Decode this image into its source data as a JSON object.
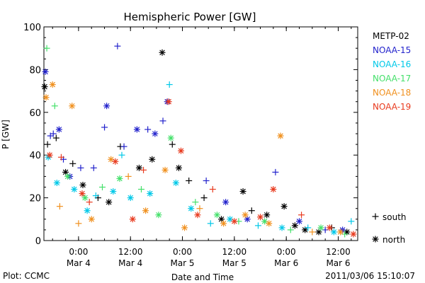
{
  "chart_data": {
    "type": "scatter",
    "title": "Hemispheric Power [GW]",
    "xlabel": "Date and Time",
    "ylabel": "P [GW]",
    "ylim": [
      0,
      100
    ],
    "yticks": [
      0,
      20,
      40,
      60,
      80,
      100
    ],
    "x_start": "2011-03-03T16:00",
    "x_end": "2011-03-06T16:30",
    "xticks": [
      {
        "time": "2011-03-04T00:00",
        "label1": "0:00",
        "label2": "Mar 4"
      },
      {
        "time": "2011-03-04T12:00",
        "label1": "12:00",
        "label2": "Mar 4"
      },
      {
        "time": "2011-03-05T00:00",
        "label1": "0:00",
        "label2": "Mar 5"
      },
      {
        "time": "2011-03-05T12:00",
        "label1": "12:00",
        "label2": "Mar 5"
      },
      {
        "time": "2011-03-06T00:00",
        "label1": "0:00",
        "label2": "Mar 6"
      },
      {
        "time": "2011-03-06T12:00",
        "label1": "12:00",
        "label2": "Mar 6"
      }
    ],
    "legend_position": "right",
    "series": [
      {
        "name": "METP-02",
        "color": "#000000",
        "points": [
          {
            "t": "2011-03-03T16:10",
            "hemisphere": "north",
            "y": 72
          },
          {
            "t": "2011-03-03T16:50",
            "hemisphere": "south",
            "y": 45
          },
          {
            "t": "2011-03-03T18:50",
            "hemisphere": "south",
            "y": 48
          },
          {
            "t": "2011-03-03T21:00",
            "hemisphere": "north",
            "y": 32
          },
          {
            "t": "2011-03-03T22:40",
            "hemisphere": "south",
            "y": 36
          },
          {
            "t": "2011-03-04T01:00",
            "hemisphere": "north",
            "y": 26
          },
          {
            "t": "2011-03-04T04:30",
            "hemisphere": "south",
            "y": 20
          },
          {
            "t": "2011-03-04T07:00",
            "hemisphere": "north",
            "y": 18
          },
          {
            "t": "2011-03-04T09:40",
            "hemisphere": "south",
            "y": 44
          },
          {
            "t": "2011-03-04T14:00",
            "hemisphere": "north",
            "y": 34
          },
          {
            "t": "2011-03-04T17:00",
            "hemisphere": "north",
            "y": 38
          },
          {
            "t": "2011-03-04T19:20",
            "hemisphere": "north",
            "y": 88
          },
          {
            "t": "2011-03-04T21:40",
            "hemisphere": "south",
            "y": 45
          },
          {
            "t": "2011-03-04T23:10",
            "hemisphere": "north",
            "y": 34
          },
          {
            "t": "2011-03-05T01:30",
            "hemisphere": "south",
            "y": 28
          },
          {
            "t": "2011-03-05T05:00",
            "hemisphere": "south",
            "y": 20
          },
          {
            "t": "2011-03-05T09:00",
            "hemisphere": "north",
            "y": 10
          },
          {
            "t": "2011-03-05T14:00",
            "hemisphere": "north",
            "y": 23
          },
          {
            "t": "2011-03-05T16:00",
            "hemisphere": "south",
            "y": 14
          },
          {
            "t": "2011-03-05T19:30",
            "hemisphere": "north",
            "y": 12
          },
          {
            "t": "2011-03-05T23:30",
            "hemisphere": "north",
            "y": 16
          },
          {
            "t": "2011-03-06T02:00",
            "hemisphere": "north",
            "y": 7
          },
          {
            "t": "2011-03-06T04:20",
            "hemisphere": "north",
            "y": 5
          },
          {
            "t": "2011-03-06T07:30",
            "hemisphere": "north",
            "y": 4
          },
          {
            "t": "2011-03-06T10:30",
            "hemisphere": "south",
            "y": 6
          },
          {
            "t": "2011-03-06T14:00",
            "hemisphere": "north",
            "y": 4
          }
        ]
      },
      {
        "name": "NOAA-15",
        "color": "#2222cc",
        "points": [
          {
            "t": "2011-03-03T16:20",
            "hemisphere": "north",
            "y": 79
          },
          {
            "t": "2011-03-03T17:30",
            "hemisphere": "south",
            "y": 49
          },
          {
            "t": "2011-03-03T18:10",
            "hemisphere": "south",
            "y": 50
          },
          {
            "t": "2011-03-03T19:30",
            "hemisphere": "north",
            "y": 52
          },
          {
            "t": "2011-03-03T20:30",
            "hemisphere": "south",
            "y": 38
          },
          {
            "t": "2011-03-03T22:00",
            "hemisphere": "north",
            "y": 30
          },
          {
            "t": "2011-03-04T00:30",
            "hemisphere": "south",
            "y": 34
          },
          {
            "t": "2011-03-04T03:30",
            "hemisphere": "south",
            "y": 34
          },
          {
            "t": "2011-03-04T06:00",
            "hemisphere": "south",
            "y": 53
          },
          {
            "t": "2011-03-04T06:30",
            "hemisphere": "north",
            "y": 63
          },
          {
            "t": "2011-03-04T09:00",
            "hemisphere": "south",
            "y": 91
          },
          {
            "t": "2011-03-04T10:30",
            "hemisphere": "south",
            "y": 44
          },
          {
            "t": "2011-03-04T13:30",
            "hemisphere": "north",
            "y": 52
          },
          {
            "t": "2011-03-04T16:00",
            "hemisphere": "south",
            "y": 52
          },
          {
            "t": "2011-03-04T17:40",
            "hemisphere": "north",
            "y": 50
          },
          {
            "t": "2011-03-04T19:30",
            "hemisphere": "south",
            "y": 56
          },
          {
            "t": "2011-03-04T20:30",
            "hemisphere": "north",
            "y": 65
          },
          {
            "t": "2011-03-05T05:30",
            "hemisphere": "south",
            "y": 28
          },
          {
            "t": "2011-03-05T10:00",
            "hemisphere": "north",
            "y": 18
          },
          {
            "t": "2011-03-05T15:00",
            "hemisphere": "north",
            "y": 10
          },
          {
            "t": "2011-03-05T21:30",
            "hemisphere": "south",
            "y": 32
          },
          {
            "t": "2011-03-06T03:00",
            "hemisphere": "north",
            "y": 9
          },
          {
            "t": "2011-03-06T09:00",
            "hemisphere": "south",
            "y": 5
          },
          {
            "t": "2011-03-06T13:00",
            "hemisphere": "north",
            "y": 5
          }
        ]
      },
      {
        "name": "NOAA-16",
        "color": "#00c8e8",
        "points": [
          {
            "t": "2011-03-03T17:00",
            "hemisphere": "north",
            "y": 39
          },
          {
            "t": "2011-03-03T19:00",
            "hemisphere": "north",
            "y": 27
          },
          {
            "t": "2011-03-03T23:00",
            "hemisphere": "north",
            "y": 24
          },
          {
            "t": "2011-03-04T02:00",
            "hemisphere": "north",
            "y": 14
          },
          {
            "t": "2011-03-04T04:00",
            "hemisphere": "south",
            "y": 21
          },
          {
            "t": "2011-03-04T08:00",
            "hemisphere": "north",
            "y": 23
          },
          {
            "t": "2011-03-04T10:00",
            "hemisphere": "south",
            "y": 40
          },
          {
            "t": "2011-03-04T12:00",
            "hemisphere": "north",
            "y": 20
          },
          {
            "t": "2011-03-04T16:30",
            "hemisphere": "north",
            "y": 22
          },
          {
            "t": "2011-03-04T21:00",
            "hemisphere": "south",
            "y": 73
          },
          {
            "t": "2011-03-04T22:30",
            "hemisphere": "north",
            "y": 27
          },
          {
            "t": "2011-03-05T02:00",
            "hemisphere": "north",
            "y": 15
          },
          {
            "t": "2011-03-05T06:30",
            "hemisphere": "south",
            "y": 8
          },
          {
            "t": "2011-03-05T11:00",
            "hemisphere": "north",
            "y": 10
          },
          {
            "t": "2011-03-05T17:30",
            "hemisphere": "south",
            "y": 7
          },
          {
            "t": "2011-03-05T23:00",
            "hemisphere": "north",
            "y": 6
          },
          {
            "t": "2011-03-06T05:00",
            "hemisphere": "south",
            "y": 6
          },
          {
            "t": "2011-03-06T11:00",
            "hemisphere": "north",
            "y": 4
          },
          {
            "t": "2011-03-06T15:00",
            "hemisphere": "south",
            "y": 9
          }
        ]
      },
      {
        "name": "NOAA-17",
        "color": "#44e06a",
        "points": [
          {
            "t": "2011-03-03T16:40",
            "hemisphere": "south",
            "y": 90
          },
          {
            "t": "2011-03-03T18:30",
            "hemisphere": "south",
            "y": 63
          },
          {
            "t": "2011-03-03T21:30",
            "hemisphere": "north",
            "y": 30
          },
          {
            "t": "2011-03-04T01:30",
            "hemisphere": "north",
            "y": 20
          },
          {
            "t": "2011-03-04T05:30",
            "hemisphere": "south",
            "y": 25
          },
          {
            "t": "2011-03-04T09:30",
            "hemisphere": "north",
            "y": 29
          },
          {
            "t": "2011-03-04T14:30",
            "hemisphere": "south",
            "y": 24
          },
          {
            "t": "2011-03-04T18:30",
            "hemisphere": "north",
            "y": 12
          },
          {
            "t": "2011-03-04T21:20",
            "hemisphere": "north",
            "y": 48
          },
          {
            "t": "2011-03-05T03:00",
            "hemisphere": "south",
            "y": 18
          },
          {
            "t": "2011-03-05T08:00",
            "hemisphere": "north",
            "y": 12
          },
          {
            "t": "2011-03-05T13:00",
            "hemisphere": "south",
            "y": 9
          },
          {
            "t": "2011-03-05T19:00",
            "hemisphere": "north",
            "y": 9
          },
          {
            "t": "2011-03-06T01:00",
            "hemisphere": "south",
            "y": 5
          },
          {
            "t": "2011-03-06T08:00",
            "hemisphere": "north",
            "y": 6
          },
          {
            "t": "2011-03-06T13:30",
            "hemisphere": "south",
            "y": 3
          }
        ]
      },
      {
        "name": "NOAA-18",
        "color": "#f0901e",
        "points": [
          {
            "t": "2011-03-03T16:30",
            "hemisphere": "north",
            "y": 67
          },
          {
            "t": "2011-03-03T18:00",
            "hemisphere": "north",
            "y": 73
          },
          {
            "t": "2011-03-03T22:30",
            "hemisphere": "north",
            "y": 63
          },
          {
            "t": "2011-03-03T19:40",
            "hemisphere": "south",
            "y": 16
          },
          {
            "t": "2011-03-04T00:00",
            "hemisphere": "south",
            "y": 8
          },
          {
            "t": "2011-03-04T03:00",
            "hemisphere": "north",
            "y": 10
          },
          {
            "t": "2011-03-04T07:30",
            "hemisphere": "north",
            "y": 38
          },
          {
            "t": "2011-03-04T11:30",
            "hemisphere": "south",
            "y": 30
          },
          {
            "t": "2011-03-04T15:30",
            "hemisphere": "north",
            "y": 14
          },
          {
            "t": "2011-03-04T20:00",
            "hemisphere": "north",
            "y": 33
          },
          {
            "t": "2011-03-05T00:30",
            "hemisphere": "north",
            "y": 6
          },
          {
            "t": "2011-03-05T04:00",
            "hemisphere": "south",
            "y": 15
          },
          {
            "t": "2011-03-05T09:30",
            "hemisphere": "north",
            "y": 8
          },
          {
            "t": "2011-03-05T14:30",
            "hemisphere": "north",
            "y": 12
          },
          {
            "t": "2011-03-05T20:00",
            "hemisphere": "north",
            "y": 8
          },
          {
            "t": "2011-03-05T22:40",
            "hemisphere": "north",
            "y": 49
          },
          {
            "t": "2011-03-06T06:00",
            "hemisphere": "south",
            "y": 4
          },
          {
            "t": "2011-03-06T12:30",
            "hemisphere": "north",
            "y": 4
          }
        ]
      },
      {
        "name": "NOAA-19",
        "color": "#e83a1e",
        "points": [
          {
            "t": "2011-03-03T17:20",
            "hemisphere": "north",
            "y": 40
          },
          {
            "t": "2011-03-03T20:00",
            "hemisphere": "south",
            "y": 39
          },
          {
            "t": "2011-03-04T00:50",
            "hemisphere": "north",
            "y": 22
          },
          {
            "t": "2011-03-04T02:30",
            "hemisphere": "south",
            "y": 18
          },
          {
            "t": "2011-03-04T08:30",
            "hemisphere": "north",
            "y": 37
          },
          {
            "t": "2011-03-04T12:30",
            "hemisphere": "north",
            "y": 10
          },
          {
            "t": "2011-03-04T15:00",
            "hemisphere": "south",
            "y": 33
          },
          {
            "t": "2011-03-04T20:50",
            "hemisphere": "north",
            "y": 65
          },
          {
            "t": "2011-03-04T23:40",
            "hemisphere": "north",
            "y": 42
          },
          {
            "t": "2011-03-05T03:30",
            "hemisphere": "north",
            "y": 12
          },
          {
            "t": "2011-03-05T07:00",
            "hemisphere": "south",
            "y": 24
          },
          {
            "t": "2011-03-05T12:00",
            "hemisphere": "north",
            "y": 9
          },
          {
            "t": "2011-03-05T18:00",
            "hemisphere": "north",
            "y": 11
          },
          {
            "t": "2011-03-05T21:00",
            "hemisphere": "north",
            "y": 24
          },
          {
            "t": "2011-03-06T03:30",
            "hemisphere": "south",
            "y": 12
          },
          {
            "t": "2011-03-06T10:00",
            "hemisphere": "north",
            "y": 6
          },
          {
            "t": "2011-03-06T15:30",
            "hemisphere": "north",
            "y": 3
          }
        ]
      }
    ],
    "marker_legend": [
      {
        "symbol": "+",
        "label": "south"
      },
      {
        "symbol": "*",
        "label": "north"
      }
    ]
  },
  "footer": {
    "left": "Plot: CCMC",
    "right": "2011/03/06 15:10:07"
  }
}
